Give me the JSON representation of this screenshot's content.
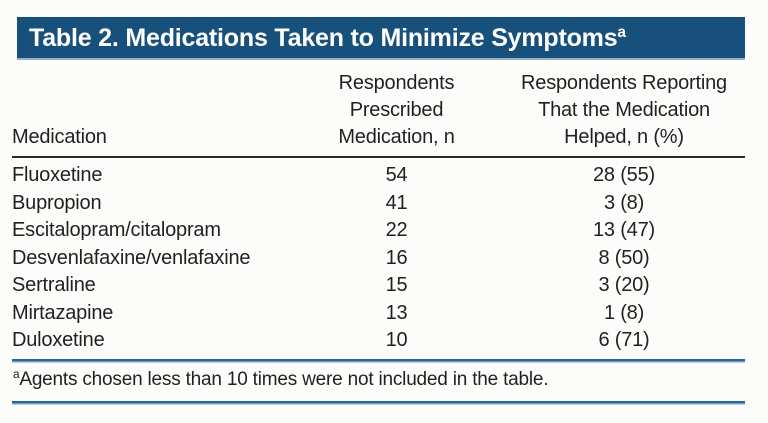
{
  "table": {
    "title": "Table 2. Medications Taken to Minimize Symptoms",
    "title_footnote_marker": "a",
    "header": {
      "col1": "Medication",
      "col2_line1": "Respondents",
      "col2_line2": "Prescribed",
      "col2_line3": "Medication, n",
      "col3_line1": "Respondents Reporting",
      "col3_line2": "That the Medication",
      "col3_line3": "Helped, n (%)"
    },
    "rows": [
      {
        "medication": "Fluoxetine",
        "prescribed_n": "54",
        "helped_n_pct": "28 (55)"
      },
      {
        "medication": "Bupropion",
        "prescribed_n": "41",
        "helped_n_pct": "3 (8)"
      },
      {
        "medication": "Escitalopram/citalopram",
        "prescribed_n": "22",
        "helped_n_pct": "13 (47)"
      },
      {
        "medication": "Desvenlafaxine/venlafaxine",
        "prescribed_n": "16",
        "helped_n_pct": "8 (50)"
      },
      {
        "medication": "Sertraline",
        "prescribed_n": "15",
        "helped_n_pct": "3 (20)"
      },
      {
        "medication": "Mirtazapine",
        "prescribed_n": "13",
        "helped_n_pct": "1 (8)"
      },
      {
        "medication": "Duloxetine",
        "prescribed_n": "10",
        "helped_n_pct": "6 (71)"
      }
    ],
    "footnote_marker": "a",
    "footnote": "Agents chosen less than 10 times were not included in the table."
  },
  "colors": {
    "title_bar": "#17507b",
    "title_text": "#ffffff",
    "rule_dark": "#2b2a29",
    "rule_blue": "#27679b",
    "rule_blue_light": "#b9d2e6",
    "body_text": "#221f1f",
    "background": "#fcfdfb"
  },
  "chart_data": {
    "type": "table",
    "title": "Table 2. Medications Taken to Minimize Symptoms",
    "columns": [
      "Medication",
      "Respondents Prescribed Medication, n",
      "Respondents Reporting That the Medication Helped, n (%)"
    ],
    "rows": [
      [
        "Fluoxetine",
        54,
        "28 (55)"
      ],
      [
        "Bupropion",
        41,
        "3 (8)"
      ],
      [
        "Escitalopram/citalopram",
        22,
        "13 (47)"
      ],
      [
        "Desvenlafaxine/venlafaxine",
        16,
        "8 (50)"
      ],
      [
        "Sertraline",
        15,
        "3 (20)"
      ],
      [
        "Mirtazapine",
        13,
        "1 (8)"
      ],
      [
        "Duloxetine",
        10,
        "6 (71)"
      ]
    ],
    "footnote": "Agents chosen less than 10 times were not included in the table."
  }
}
